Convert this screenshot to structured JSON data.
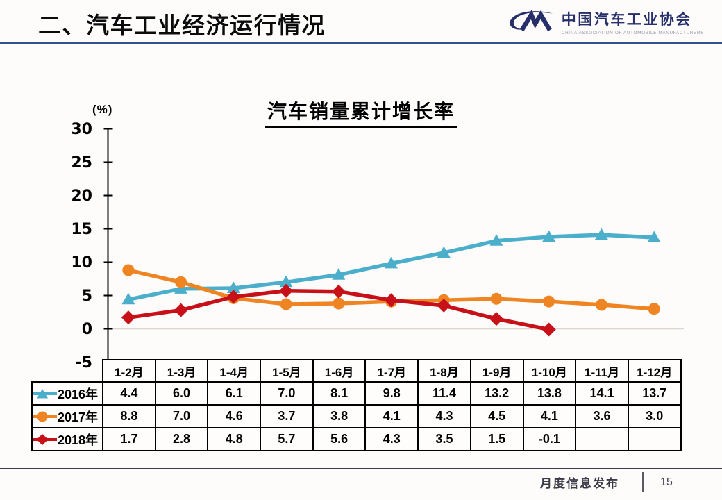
{
  "header": {
    "title": "二、汽车工业经济运行情况",
    "divider_color": "#33518E",
    "logo": {
      "mark_icon": "cam-swoosh-logo",
      "org_cn": "中国汽车工业协会",
      "org_en": "CHINA ASSOCIATION OF AUTOMOBILE MANUFACTURERS"
    }
  },
  "chart_data": {
    "type": "line",
    "title": "汽车销量累计增长率",
    "unit_label": "(%)",
    "categories": [
      "1-2月",
      "1-3月",
      "1-4月",
      "1-5月",
      "1-6月",
      "1-7月",
      "1-8月",
      "1-9月",
      "1-10月",
      "1-11月",
      "1-12月"
    ],
    "ylim": [
      -5,
      30
    ],
    "yticks": [
      30,
      25,
      20,
      15,
      10,
      5,
      0,
      -5
    ],
    "grid": "zero-line-only",
    "grid_color": "#dcd6cf",
    "legend_position": "table-left",
    "series": [
      {
        "name": "2016年",
        "marker": "triangle",
        "color": "#4bafcb",
        "values": [
          4.4,
          6.0,
          6.1,
          7.0,
          8.1,
          9.8,
          11.4,
          13.2,
          13.8,
          14.1,
          13.7
        ]
      },
      {
        "name": "2017年",
        "marker": "circle",
        "color": "#ee8422",
        "values": [
          8.8,
          7.0,
          4.6,
          3.7,
          3.8,
          4.1,
          4.3,
          4.5,
          4.1,
          3.6,
          3.0
        ]
      },
      {
        "name": "2018年",
        "marker": "diamond",
        "color": "#c81018",
        "values": [
          1.7,
          2.8,
          4.8,
          5.7,
          5.6,
          4.3,
          3.5,
          1.5,
          -0.1,
          null,
          null
        ]
      }
    ]
  },
  "footer": {
    "label": "月度信息发布",
    "page": "15"
  }
}
